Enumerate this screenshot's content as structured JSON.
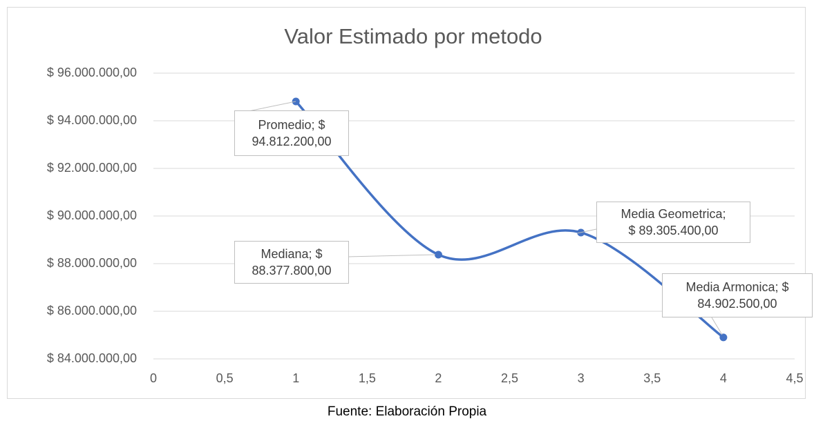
{
  "chart_data": {
    "type": "line",
    "title": "Valor Estimado por metodo",
    "x": [
      1,
      2,
      3,
      4
    ],
    "values": [
      94812200,
      88377800,
      89305400,
      84902500
    ],
    "value_labels": [
      "Promedio; $\n94.812.200,00",
      "Mediana; $\n88.377.800,00",
      "Media Geometrica;\n$ 89.305.400,00",
      "Media Armonica; $\n84.902.500,00"
    ],
    "color": "#4472c4",
    "smooth": true,
    "grid": true,
    "xlim": [
      0,
      4.5
    ],
    "xticks": [
      0,
      {
        "value": 0.5,
        "label": "0,5"
      },
      1,
      {
        "value": 1.5,
        "label": "1,5"
      },
      2,
      {
        "value": 2.5,
        "label": "2,5"
      },
      3,
      {
        "value": 3.5,
        "label": "3,5"
      },
      4,
      {
        "value": 4.5,
        "label": "4,5"
      }
    ],
    "ylim": [
      84000000,
      96000000
    ],
    "yticks": [
      {
        "value": 84000000,
        "label": "$ 84.000.000,00"
      },
      {
        "value": 86000000,
        "label": "$ 86.000.000,00"
      },
      {
        "value": 88000000,
        "label": "$ 88.000.000,00"
      },
      {
        "value": 90000000,
        "label": "$ 90.000.000,00"
      },
      {
        "value": 92000000,
        "label": "$ 92.000.000,00"
      },
      {
        "value": 94000000,
        "label": "$ 94.000.000,00"
      },
      {
        "value": 96000000,
        "label": "$ 96.000.000,00"
      }
    ]
  },
  "caption": "Fuente: Elaboración Propia"
}
